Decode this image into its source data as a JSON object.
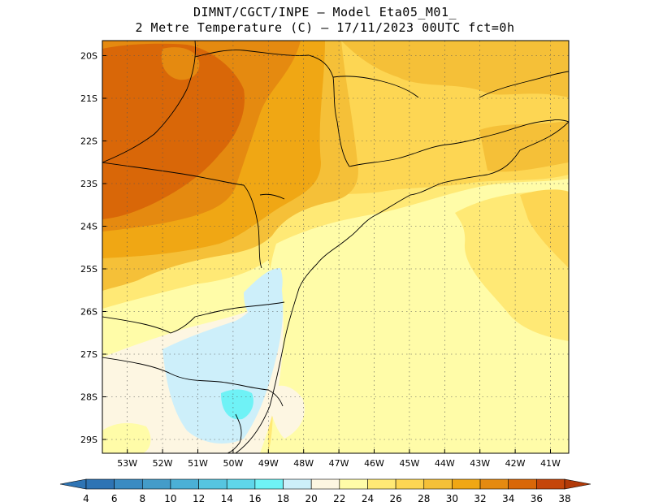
{
  "title_line1": "DIMNT/CGCT/INPE –  Model Eta05_M01_",
  "title_line2": "2 Metre Temperature (C) –  17/11/2023 00UTC fct=0h",
  "lat_labels": [
    "20S",
    "21S",
    "22S",
    "23S",
    "24S",
    "25S",
    "26S",
    "27S",
    "28S",
    "29S"
  ],
  "lon_labels": [
    "53W",
    "52W",
    "51W",
    "50W",
    "49W",
    "48W",
    "47W",
    "46W",
    "45W",
    "44W",
    "43W",
    "42W",
    "41W"
  ],
  "colorbar": {
    "labels": [
      "4",
      "6",
      "8",
      "10",
      "12",
      "14",
      "16",
      "18",
      "20",
      "22",
      "24",
      "26",
      "28",
      "30",
      "32",
      "34",
      "36",
      "38"
    ],
    "colors": [
      "#2e74b4",
      "#3a8bc2",
      "#449cc9",
      "#4bb0d6",
      "#56c5e0",
      "#5fd6ea",
      "#6ff2f6",
      "#cdeffa",
      "#fdf6e2",
      "#fffca8",
      "#ffe975",
      "#fdd653",
      "#f5c038",
      "#f0a714",
      "#e58a10",
      "#d96708",
      "#c5460a"
    ]
  }
}
